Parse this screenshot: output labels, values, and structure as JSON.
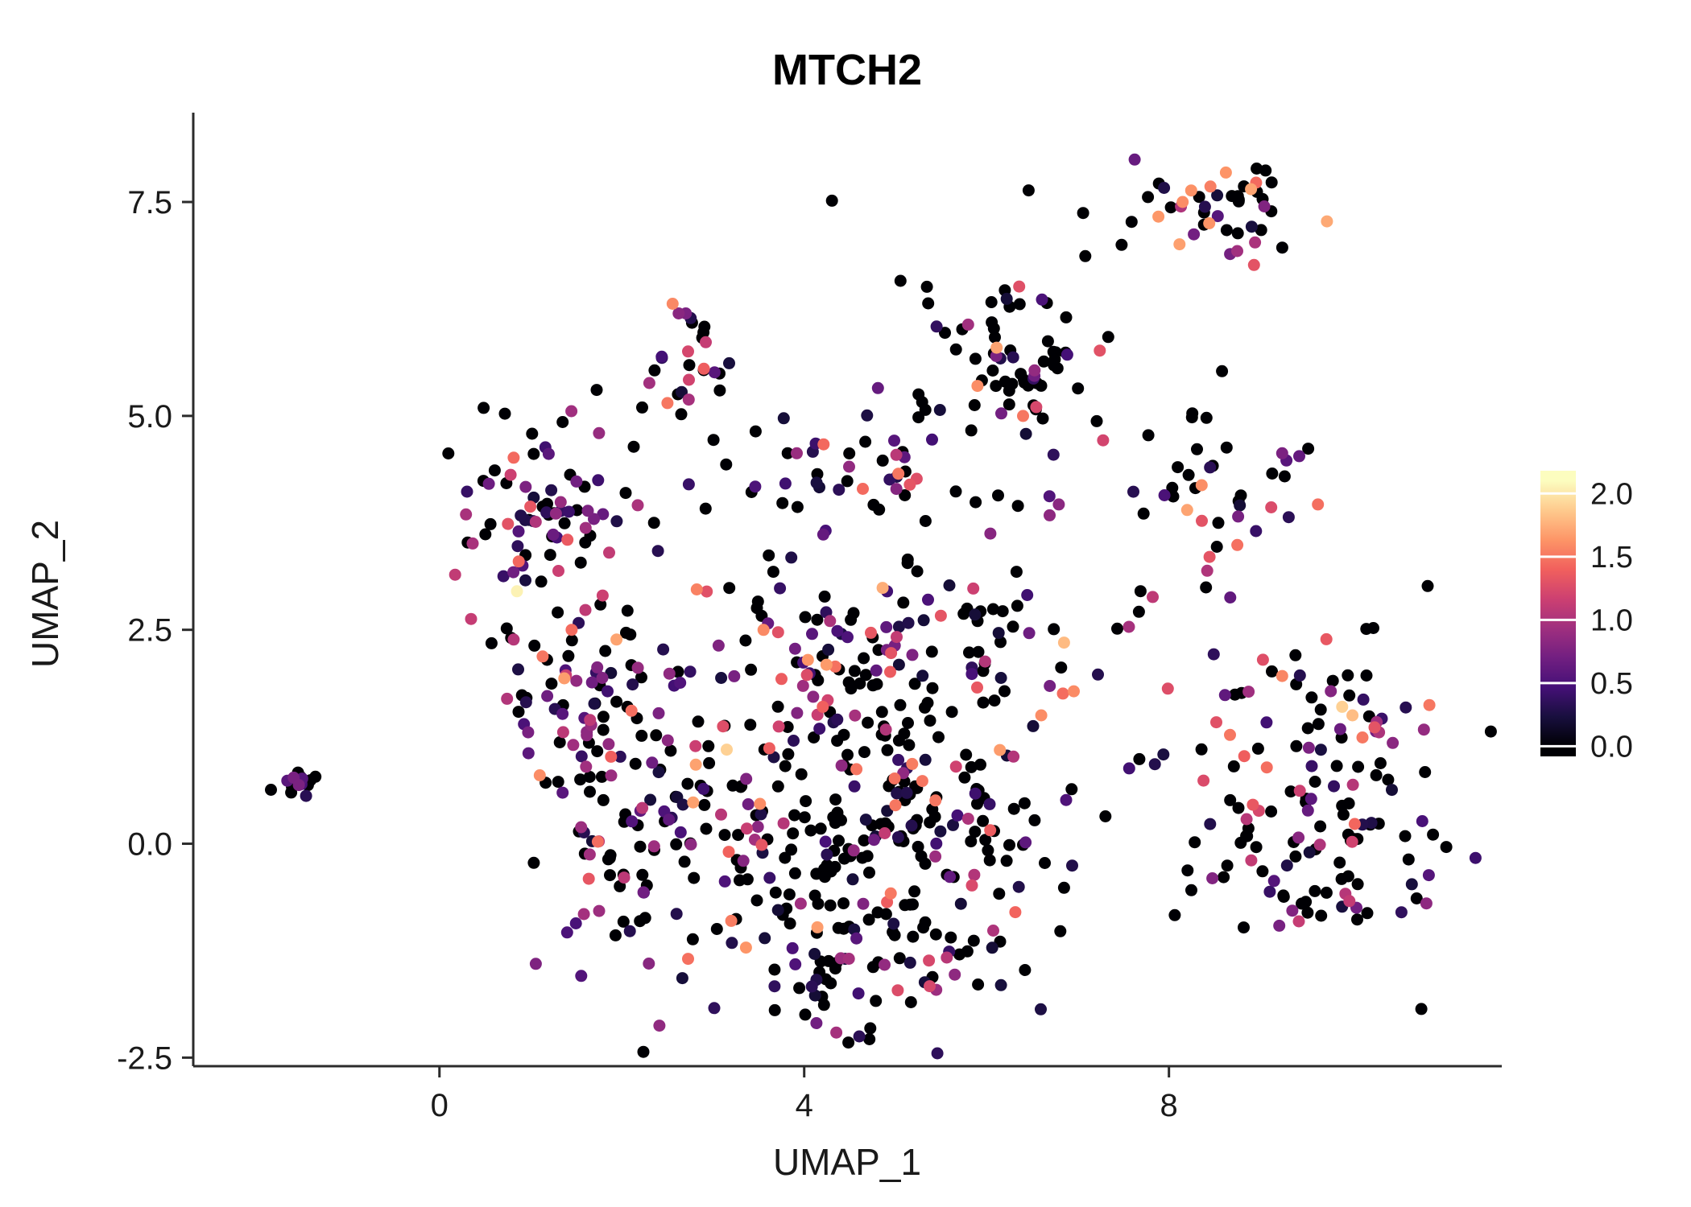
{
  "chart_data": {
    "type": "scatter",
    "title": "MTCH2",
    "xlabel": "UMAP_1",
    "ylabel": "UMAP_2",
    "xlim": [
      -2.7,
      11.65
    ],
    "ylim": [
      -2.6,
      8.45
    ],
    "grid": false,
    "legend_position": "right",
    "x_ticks": [
      {
        "value": 0,
        "label": "0"
      },
      {
        "value": 4,
        "label": "4"
      },
      {
        "value": 8,
        "label": "8"
      }
    ],
    "y_ticks": [
      {
        "value": -2.5,
        "label": "-2.5"
      },
      {
        "value": 0,
        "label": "0.0"
      },
      {
        "value": 2.5,
        "label": "2.5"
      },
      {
        "value": 5,
        "label": "5.0"
      },
      {
        "value": 7.5,
        "label": "7.5"
      }
    ],
    "color_scale": {
      "vmin": 0.0,
      "vmax": 2.1,
      "legend_ticks": [
        {
          "value": 2.0,
          "label": "2.0"
        },
        {
          "value": 1.5,
          "label": "1.5"
        },
        {
          "value": 1.0,
          "label": "1.0"
        },
        {
          "value": 0.5,
          "label": "0.5"
        },
        {
          "value": 0.0,
          "label": "0.0"
        }
      ],
      "colors": [
        "#000004",
        "#180f3e",
        "#451077",
        "#721f81",
        "#9f2f7f",
        "#cd4071",
        "#f1605d",
        "#fd9567",
        "#feca8d",
        "#fcfdbf"
      ]
    },
    "clusters": [
      {
        "cx": -1.55,
        "cy": 0.72,
        "sx": 0.16,
        "sy": 0.09,
        "n": 14,
        "p0": 0.5,
        "vmax": 1.1
      },
      {
        "cx": 1.1,
        "cy": 4.05,
        "sx": 0.52,
        "sy": 0.5,
        "n": 80,
        "p0": 0.35,
        "vmax": 1.55
      },
      {
        "cx": 2.75,
        "cy": 5.75,
        "sx": 0.25,
        "sy": 0.33,
        "n": 26,
        "p0": 0.45,
        "vmax": 1.6
      },
      {
        "cx": 4.3,
        "cy": 4.35,
        "sx": 0.9,
        "sy": 0.28,
        "n": 38,
        "p0": 0.5,
        "vmax": 1.5
      },
      {
        "cx": 6.2,
        "cy": 5.5,
        "sx": 0.52,
        "sy": 0.45,
        "n": 62,
        "p0": 0.7,
        "vmax": 1.7
      },
      {
        "cx": 8.65,
        "cy": 7.45,
        "sx": 0.42,
        "sy": 0.33,
        "n": 42,
        "p0": 0.62,
        "vmax": 1.75
      },
      {
        "cx": 8.6,
        "cy": 4.25,
        "sx": 0.42,
        "sy": 0.45,
        "n": 36,
        "p0": 0.58,
        "vmax": 1.7
      },
      {
        "cx": 1.55,
        "cy": 1.6,
        "sx": 0.5,
        "sy": 0.6,
        "n": 75,
        "p0": 0.45,
        "vmax": 1.7
      },
      {
        "cx": 2.1,
        "cy": 0.0,
        "sx": 0.45,
        "sy": 0.7,
        "n": 55,
        "p0": 0.5,
        "vmax": 1.4
      },
      {
        "cx": 4.7,
        "cy": 0.3,
        "sx": 1.25,
        "sy": 1.0,
        "n": 320,
        "p0": 0.55,
        "vmax": 1.7
      },
      {
        "cx": 4.9,
        "cy": 2.35,
        "sx": 1.1,
        "sy": 0.5,
        "n": 85,
        "p0": 0.5,
        "vmax": 1.75
      },
      {
        "cx": 9.7,
        "cy": 1.4,
        "sx": 0.8,
        "sy": 0.55,
        "n": 62,
        "p0": 0.5,
        "vmax": 1.85
      },
      {
        "cx": 9.5,
        "cy": -0.1,
        "sx": 0.75,
        "sy": 0.6,
        "n": 85,
        "p0": 0.5,
        "vmax": 1.7
      },
      {
        "cx": 5.6,
        "cy": 3.4,
        "sx": 1.7,
        "sy": 0.7,
        "n": 40,
        "p0": 0.6,
        "vmax": 1.5
      },
      {
        "cx": 4.7,
        "cy": -1.5,
        "sx": 0.95,
        "sy": 0.33,
        "n": 48,
        "p0": 0.55,
        "vmax": 1.3
      },
      {
        "cx": 6.7,
        "cy": 6.5,
        "sx": 1.1,
        "sy": 0.7,
        "n": 14,
        "p0": 0.8,
        "vmax": 1.2
      }
    ],
    "highlight_points": [
      {
        "x": 0.85,
        "y": 2.95,
        "v": 2.05
      },
      {
        "x": 3.15,
        "y": 1.1,
        "v": 1.9
      },
      {
        "x": 6.85,
        "y": 2.35,
        "v": 1.8
      },
      {
        "x": 1.1,
        "y": 0.8,
        "v": 1.6
      },
      {
        "x": 5.9,
        "y": 5.35,
        "v": 1.6
      },
      {
        "x": 6.4,
        "y": 5.0,
        "v": 1.5
      },
      {
        "x": 8.15,
        "y": 7.5,
        "v": 1.6
      },
      {
        "x": 8.9,
        "y": 7.65,
        "v": 1.7
      },
      {
        "x": 8.2,
        "y": 3.9,
        "v": 1.7
      },
      {
        "x": 9.9,
        "y": 1.6,
        "v": 1.9
      },
      {
        "x": 6.6,
        "y": 1.5,
        "v": 1.6
      },
      {
        "x": 5.0,
        "y": 0.45,
        "v": 1.5
      },
      {
        "x": 1.45,
        "y": 2.5,
        "v": 1.45
      },
      {
        "x": 2.5,
        "y": 5.15,
        "v": 1.5
      }
    ]
  }
}
